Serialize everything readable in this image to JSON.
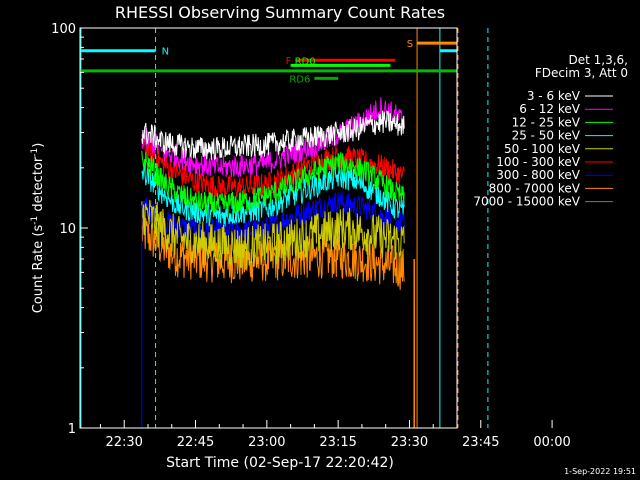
{
  "chart_data": {
    "type": "line",
    "title": "RHESSI Observing Summary Count Rates",
    "xlabel": "Start Time (02-Sep-17 22:20:42)",
    "ylabel_main": "Count Rate (s",
    "ylabel_sup1": "-1",
    "ylabel_mid": " detector",
    "ylabel_sup2": "-1",
    "ylabel_end": ")",
    "x_range_min": [
      20.7,
      100.0
    ],
    "y_scale": "log",
    "ylim": [
      1,
      100
    ],
    "x_ticks": [
      {
        "t": 30,
        "label": "22:30"
      },
      {
        "t": 45,
        "label": "22:45"
      },
      {
        "t": 60,
        "label": "23:00"
      },
      {
        "t": 75,
        "label": "23:15"
      },
      {
        "t": 90,
        "label": "23:30"
      },
      {
        "t": 105,
        "label": "23:45"
      },
      {
        "t": 120,
        "label": "00:00"
      }
    ],
    "y_ticks": [
      {
        "v": 100,
        "label": "100"
      },
      {
        "v": 10,
        "label": "10"
      },
      {
        "v": 1,
        "label": "1"
      }
    ],
    "legend_header": [
      "Det 1,3,6,",
      "FDecim 3, Att 0"
    ],
    "series": [
      {
        "name": "3 - 6 keV",
        "color": "#ffffff",
        "values": [
          [
            33.7,
            30
          ],
          [
            36,
            29
          ],
          [
            38,
            27
          ],
          [
            41,
            26
          ],
          [
            45,
            25
          ],
          [
            50,
            25
          ],
          [
            55,
            25.5
          ],
          [
            60,
            26
          ],
          [
            64,
            27
          ],
          [
            68,
            28
          ],
          [
            72,
            29
          ],
          [
            76,
            30
          ],
          [
            79,
            31
          ],
          [
            82,
            33
          ],
          [
            85,
            34
          ],
          [
            87,
            33
          ],
          [
            89,
            32
          ]
        ]
      },
      {
        "name": "6 - 12 keV",
        "color": "#ff00ff",
        "values": [
          [
            33.7,
            28
          ],
          [
            36,
            27
          ],
          [
            38,
            24
          ],
          [
            41,
            23
          ],
          [
            45,
            21
          ],
          [
            50,
            20
          ],
          [
            55,
            20.5
          ],
          [
            60,
            21
          ],
          [
            64,
            23
          ],
          [
            68,
            25
          ],
          [
            72,
            27
          ],
          [
            76,
            30
          ],
          [
            79,
            33
          ],
          [
            82,
            37
          ],
          [
            84,
            40
          ],
          [
            86,
            38
          ],
          [
            89,
            34
          ]
        ]
      },
      {
        "name": "12 - 25 keV",
        "color": "#00ff00",
        "values": [
          [
            33.7,
            22
          ],
          [
            36,
            20
          ],
          [
            38,
            17
          ],
          [
            41,
            15
          ],
          [
            45,
            13.5
          ],
          [
            50,
            13
          ],
          [
            55,
            13.5
          ],
          [
            60,
            14.5
          ],
          [
            64,
            16
          ],
          [
            68,
            18
          ],
          [
            72,
            20
          ],
          [
            75,
            21
          ],
          [
            78,
            20.5
          ],
          [
            81,
            19
          ],
          [
            84,
            17
          ],
          [
            86,
            15.5
          ],
          [
            89,
            14
          ]
        ]
      },
      {
        "name": "25 - 50 keV",
        "color": "#00ffff",
        "values": [
          [
            33.7,
            19
          ],
          [
            36,
            17
          ],
          [
            38,
            15
          ],
          [
            41,
            13
          ],
          [
            45,
            12
          ],
          [
            50,
            11.5
          ],
          [
            55,
            12
          ],
          [
            60,
            12.5
          ],
          [
            64,
            14
          ],
          [
            68,
            15.5
          ],
          [
            72,
            17
          ],
          [
            75,
            18
          ],
          [
            78,
            17.5
          ],
          [
            81,
            16
          ],
          [
            84,
            14.5
          ],
          [
            86,
            13
          ],
          [
            89,
            12
          ]
        ]
      },
      {
        "name": "50 - 100 keV",
        "color": "#cccc00",
        "values": [
          [
            33.7,
            12
          ],
          [
            36,
            11
          ],
          [
            38,
            10
          ],
          [
            41,
            9
          ],
          [
            45,
            8.5
          ],
          [
            50,
            8.2
          ],
          [
            55,
            8
          ],
          [
            60,
            8.2
          ],
          [
            64,
            8.6
          ],
          [
            68,
            9
          ],
          [
            72,
            9.5
          ],
          [
            76,
            10
          ],
          [
            80,
            9.6
          ],
          [
            84,
            9
          ],
          [
            89,
            8.5
          ]
        ]
      },
      {
        "name": "100 - 300 keV",
        "color": "#ff0000",
        "values": [
          [
            33.7,
            26
          ],
          [
            36,
            24
          ],
          [
            38,
            21
          ],
          [
            41,
            19
          ],
          [
            45,
            17
          ],
          [
            50,
            16
          ],
          [
            55,
            16
          ],
          [
            60,
            16.5
          ],
          [
            64,
            18
          ],
          [
            68,
            20
          ],
          [
            72,
            22
          ],
          [
            76,
            23
          ],
          [
            79,
            22
          ],
          [
            82,
            21
          ],
          [
            85,
            20
          ],
          [
            87,
            19
          ],
          [
            89,
            18
          ]
        ]
      },
      {
        "name": "300 - 800 keV",
        "color": "#0000ff",
        "values": [
          [
            33.7,
            13
          ],
          [
            36,
            12
          ],
          [
            38,
            11
          ],
          [
            41,
            10.2
          ],
          [
            45,
            9.8
          ],
          [
            50,
            9.6
          ],
          [
            55,
            9.6
          ],
          [
            60,
            10
          ],
          [
            64,
            11
          ],
          [
            68,
            12
          ],
          [
            72,
            13
          ],
          [
            75,
            13.5
          ],
          [
            78,
            13
          ],
          [
            81,
            12.5
          ],
          [
            84,
            11.5
          ],
          [
            86,
            11
          ],
          [
            89,
            10.5
          ]
        ]
      },
      {
        "name": "800 - 7000 keV",
        "color": "#ff8800",
        "values": [
          [
            33.7,
            9.5
          ],
          [
            36,
            8.8
          ],
          [
            38,
            8
          ],
          [
            41,
            7.3
          ],
          [
            45,
            7
          ],
          [
            50,
            6.8
          ],
          [
            55,
            6.8
          ],
          [
            60,
            6.9
          ],
          [
            64,
            7
          ],
          [
            68,
            7.1
          ],
          [
            72,
            7.2
          ],
          [
            76,
            7.1
          ],
          [
            80,
            6.9
          ],
          [
            84,
            6.6
          ],
          [
            87,
            6.4
          ],
          [
            89,
            6.2
          ]
        ]
      },
      {
        "name": "7000 - 15000 keV",
        "color": "#888800",
        "values": []
      }
    ],
    "annotations": {
      "status_bars": [
        {
          "label": "N",
          "color": "#00ffff",
          "segments": [
            [
              20.7,
              36.6
            ],
            [
              96.4,
              106.5
            ]
          ],
          "y_value": 77
        },
        {
          "label": "S",
          "color": "#ff8800",
          "segments": [
            [
              91.6,
              100.2
            ]
          ],
          "y_value": 84
        },
        {
          "label": "F",
          "color": "#ff0000",
          "segments": [
            [
              66,
              87
            ]
          ],
          "y_value": 69
        },
        {
          "label": "RD0",
          "color": "#00ff00",
          "segments": [
            [
              65,
              86
            ]
          ],
          "y_value": 65
        },
        {
          "label": "RD6",
          "color": "#00aa00",
          "segments": [
            [
              70,
              75
            ]
          ],
          "y_value": 56
        },
        {
          "label": "",
          "color": "#00bb00",
          "segments": [
            [
              20.7,
              100.0
            ]
          ],
          "y_value": 61
        }
      ],
      "vertical_lines": [
        {
          "t": 20.9,
          "color": "#00ffff",
          "style": "solid"
        },
        {
          "t": 36.6,
          "color": "#00ffff",
          "style": "dashed"
        },
        {
          "t": 91.6,
          "color": "#ff8800",
          "style": "solid"
        },
        {
          "t": 96.4,
          "color": "#00ffff",
          "style": "solid"
        },
        {
          "t": 100.2,
          "color": "#ff8800",
          "style": "dashed"
        },
        {
          "t": 106.5,
          "color": "#00ffff",
          "style": "dashed"
        }
      ],
      "rising_edges": [
        {
          "t": 33.7,
          "color": "#0000ff"
        }
      ],
      "orange_spike": {
        "t": 91.0,
        "from": 1,
        "to": 7
      }
    },
    "grid": false,
    "legend_position": "right"
  },
  "footer": {
    "timestamp": "1-Sep-2022 19:51"
  }
}
